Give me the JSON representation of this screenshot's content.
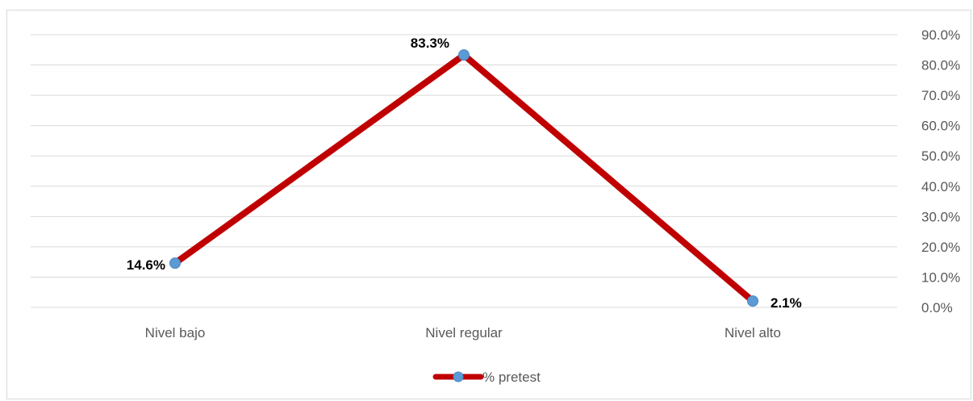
{
  "chart_data": {
    "type": "line",
    "categories": [
      "Nivel bajo",
      "Nivel regular",
      "Nivel alto"
    ],
    "series": [
      {
        "name": "% pretest",
        "values": [
          14.6,
          83.3,
          2.1
        ],
        "labels": [
          "14.6%",
          "83.3%",
          "2.1%"
        ]
      }
    ],
    "y_ticks": [
      "0.0%",
      "10.0%",
      "20.0%",
      "30.0%",
      "40.0%",
      "50.0%",
      "60.0%",
      "70.0%",
      "80.0%",
      "90.0%"
    ],
    "ylim": [
      0,
      90
    ],
    "y_axis_side": "right",
    "grid": true,
    "legend_position": "bottom"
  },
  "colors": {
    "line": "#c00000",
    "marker": "#5b9bd5",
    "grid": "#d9d9d9"
  }
}
